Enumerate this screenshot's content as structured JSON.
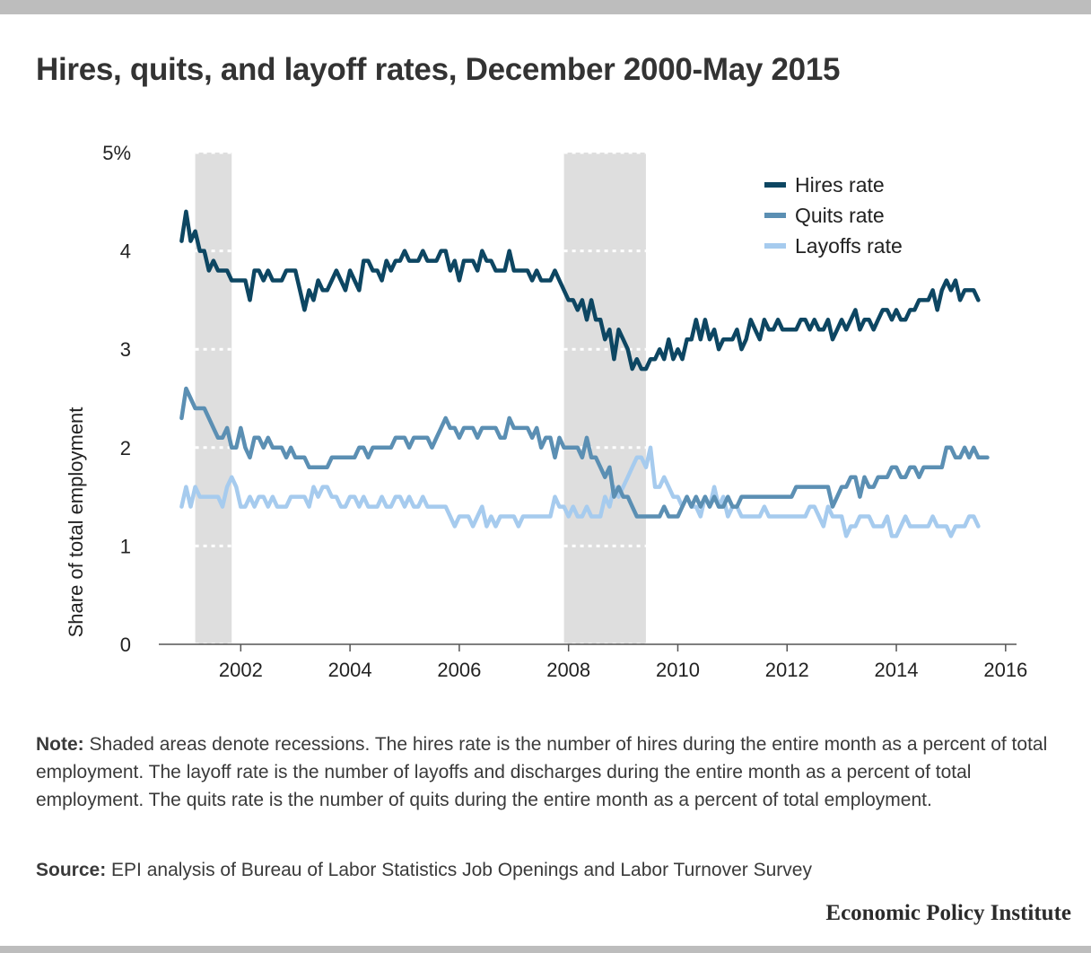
{
  "title": "Hires, quits, and layoff rates, December 2000-May 2015",
  "note_label": "Note:",
  "note_text": "Shaded areas denote recessions. The hires rate is the number of hires during the entire month as a percent of total employment. The layoff rate is the number of layoffs and discharges during the entire month as a percent of total employment. The quits rate is the number of quits during the entire month as a percent of total employment.",
  "source_label": "Source:",
  "source_text": "EPI analysis of Bureau of Labor Statistics Job Openings and Labor Turnover Survey",
  "organization": "Economic Policy Institute",
  "colors": {
    "hires": "#0d4662",
    "quits": "#5b8fb3",
    "layoffs": "#a6cbee",
    "recession": "#dedede",
    "axis": "#555555",
    "top_bar": "#bdbdbd"
  },
  "chart_data": {
    "type": "line",
    "title": "Hires, quits, and layoff rates, December 2000-May 2015",
    "xlabel": "",
    "ylabel": "Share of total employment",
    "xlim": [
      2000.5,
      2016.2
    ],
    "ylim": [
      0,
      5
    ],
    "x_ticks": [
      2002,
      2004,
      2006,
      2008,
      2010,
      2012,
      2014,
      2016
    ],
    "y_ticks": [
      {
        "value": 0,
        "label": "0"
      },
      {
        "value": 1,
        "label": "1"
      },
      {
        "value": 2,
        "label": "2"
      },
      {
        "value": 3,
        "label": "3"
      },
      {
        "value": 4,
        "label": "4"
      },
      {
        "value": 5,
        "label": "5%"
      }
    ],
    "grid": "dotted horizontal gridlines, visible on recession shading",
    "legend_position": "top-right",
    "x_start": "2000-12",
    "x_frequency": "monthly",
    "recessions": [
      {
        "start": "2001-03",
        "end": "2001-11"
      },
      {
        "start": "2007-12",
        "end": "2009-06"
      }
    ],
    "series": [
      {
        "name": "Hires rate",
        "color": "#0d4662",
        "values": [
          4.1,
          4.4,
          4.1,
          4.2,
          4.0,
          4.0,
          3.8,
          3.9,
          3.8,
          3.8,
          3.8,
          3.7,
          3.7,
          3.7,
          3.7,
          3.5,
          3.8,
          3.8,
          3.7,
          3.8,
          3.7,
          3.7,
          3.7,
          3.8,
          3.8,
          3.8,
          3.6,
          3.4,
          3.6,
          3.5,
          3.7,
          3.6,
          3.6,
          3.7,
          3.8,
          3.7,
          3.6,
          3.8,
          3.7,
          3.6,
          3.9,
          3.9,
          3.8,
          3.8,
          3.7,
          3.9,
          3.8,
          3.9,
          3.9,
          4.0,
          3.9,
          3.9,
          3.9,
          4.0,
          3.9,
          3.9,
          3.9,
          4.0,
          4.0,
          3.8,
          3.9,
          3.7,
          3.9,
          3.9,
          3.9,
          3.8,
          4.0,
          3.9,
          3.9,
          3.8,
          3.8,
          3.8,
          4.0,
          3.8,
          3.8,
          3.8,
          3.8,
          3.7,
          3.8,
          3.7,
          3.7,
          3.7,
          3.8,
          3.7,
          3.6,
          3.5,
          3.5,
          3.4,
          3.5,
          3.3,
          3.5,
          3.3,
          3.3,
          3.1,
          3.2,
          2.9,
          3.2,
          3.1,
          3.0,
          2.8,
          2.9,
          2.8,
          2.8,
          2.9,
          2.9,
          3.0,
          2.9,
          3.1,
          2.9,
          3.0,
          2.9,
          3.1,
          3.1,
          3.3,
          3.1,
          3.3,
          3.1,
          3.2,
          3.0,
          3.1,
          3.1,
          3.1,
          3.2,
          3.0,
          3.1,
          3.3,
          3.2,
          3.1,
          3.3,
          3.2,
          3.2,
          3.3,
          3.2,
          3.2,
          3.2,
          3.2,
          3.3,
          3.3,
          3.2,
          3.3,
          3.2,
          3.2,
          3.3,
          3.1,
          3.2,
          3.3,
          3.2,
          3.3,
          3.4,
          3.2,
          3.3,
          3.3,
          3.2,
          3.3,
          3.4,
          3.4,
          3.3,
          3.4,
          3.3,
          3.3,
          3.4,
          3.4,
          3.5,
          3.5,
          3.5,
          3.6,
          3.4,
          3.6,
          3.7,
          3.6,
          3.7,
          3.5,
          3.6,
          3.6,
          3.6,
          3.5
        ]
      },
      {
        "name": "Quits rate",
        "color": "#5b8fb3",
        "values": [
          2.3,
          2.6,
          2.5,
          2.4,
          2.4,
          2.4,
          2.3,
          2.2,
          2.1,
          2.1,
          2.2,
          2.0,
          2.0,
          2.2,
          2.0,
          1.9,
          2.1,
          2.1,
          2.0,
          2.1,
          2.0,
          2.0,
          2.0,
          1.9,
          2.0,
          1.9,
          1.9,
          1.9,
          1.8,
          1.8,
          1.8,
          1.8,
          1.8,
          1.9,
          1.9,
          1.9,
          1.9,
          1.9,
          1.9,
          2.0,
          2.0,
          1.9,
          2.0,
          2.0,
          2.0,
          2.0,
          2.0,
          2.1,
          2.1,
          2.1,
          2.0,
          2.1,
          2.1,
          2.1,
          2.1,
          2.0,
          2.1,
          2.2,
          2.3,
          2.2,
          2.2,
          2.1,
          2.2,
          2.2,
          2.2,
          2.1,
          2.2,
          2.2,
          2.2,
          2.2,
          2.1,
          2.1,
          2.3,
          2.2,
          2.2,
          2.2,
          2.2,
          2.1,
          2.2,
          2.0,
          2.1,
          2.1,
          1.9,
          2.1,
          2.0,
          2.0,
          2.0,
          2.0,
          1.9,
          2.1,
          1.9,
          1.9,
          1.8,
          1.7,
          1.8,
          1.5,
          1.6,
          1.5,
          1.5,
          1.4,
          1.3,
          1.3,
          1.3,
          1.3,
          1.3,
          1.3,
          1.4,
          1.3,
          1.3,
          1.3,
          1.4,
          1.5,
          1.4,
          1.5,
          1.4,
          1.5,
          1.4,
          1.5,
          1.4,
          1.4,
          1.5,
          1.4,
          1.4,
          1.5,
          1.5,
          1.5,
          1.5,
          1.5,
          1.5,
          1.5,
          1.5,
          1.5,
          1.5,
          1.5,
          1.5,
          1.6,
          1.6,
          1.6,
          1.6,
          1.6,
          1.6,
          1.6,
          1.6,
          1.4,
          1.5,
          1.6,
          1.6,
          1.7,
          1.7,
          1.5,
          1.7,
          1.6,
          1.6,
          1.7,
          1.7,
          1.7,
          1.8,
          1.8,
          1.7,
          1.7,
          1.8,
          1.8,
          1.7,
          1.8,
          1.8,
          1.8,
          1.8,
          1.8,
          2.0,
          2.0,
          1.9,
          1.9,
          2.0,
          1.9,
          2.0,
          1.9,
          1.9,
          1.9
        ]
      },
      {
        "name": "Layoffs rate",
        "color": "#a6cbee",
        "values": [
          1.4,
          1.6,
          1.4,
          1.6,
          1.5,
          1.5,
          1.5,
          1.5,
          1.5,
          1.4,
          1.6,
          1.7,
          1.6,
          1.4,
          1.4,
          1.5,
          1.4,
          1.5,
          1.5,
          1.4,
          1.5,
          1.4,
          1.4,
          1.4,
          1.5,
          1.5,
          1.5,
          1.5,
          1.4,
          1.6,
          1.5,
          1.6,
          1.6,
          1.5,
          1.5,
          1.4,
          1.4,
          1.5,
          1.5,
          1.4,
          1.5,
          1.4,
          1.4,
          1.4,
          1.5,
          1.4,
          1.4,
          1.5,
          1.5,
          1.4,
          1.5,
          1.4,
          1.4,
          1.5,
          1.4,
          1.4,
          1.4,
          1.4,
          1.4,
          1.3,
          1.2,
          1.3,
          1.3,
          1.3,
          1.2,
          1.3,
          1.4,
          1.2,
          1.3,
          1.2,
          1.3,
          1.3,
          1.3,
          1.3,
          1.2,
          1.3,
          1.3,
          1.3,
          1.3,
          1.3,
          1.3,
          1.3,
          1.5,
          1.4,
          1.4,
          1.3,
          1.4,
          1.3,
          1.3,
          1.4,
          1.3,
          1.3,
          1.3,
          1.5,
          1.4,
          1.6,
          1.5,
          1.6,
          1.7,
          1.8,
          1.9,
          1.9,
          1.8,
          2.0,
          1.6,
          1.6,
          1.7,
          1.6,
          1.5,
          1.5,
          1.4,
          1.5,
          1.4,
          1.4,
          1.3,
          1.5,
          1.4,
          1.6,
          1.4,
          1.5,
          1.3,
          1.4,
          1.4,
          1.3,
          1.3,
          1.3,
          1.3,
          1.3,
          1.4,
          1.3,
          1.3,
          1.3,
          1.3,
          1.3,
          1.3,
          1.3,
          1.3,
          1.3,
          1.4,
          1.4,
          1.3,
          1.2,
          1.4,
          1.3,
          1.3,
          1.3,
          1.1,
          1.2,
          1.2,
          1.3,
          1.3,
          1.3,
          1.2,
          1.2,
          1.2,
          1.3,
          1.1,
          1.1,
          1.2,
          1.3,
          1.2,
          1.2,
          1.2,
          1.2,
          1.2,
          1.3,
          1.2,
          1.2,
          1.2,
          1.1,
          1.2,
          1.2,
          1.2,
          1.3,
          1.3,
          1.2
        ]
      }
    ]
  }
}
